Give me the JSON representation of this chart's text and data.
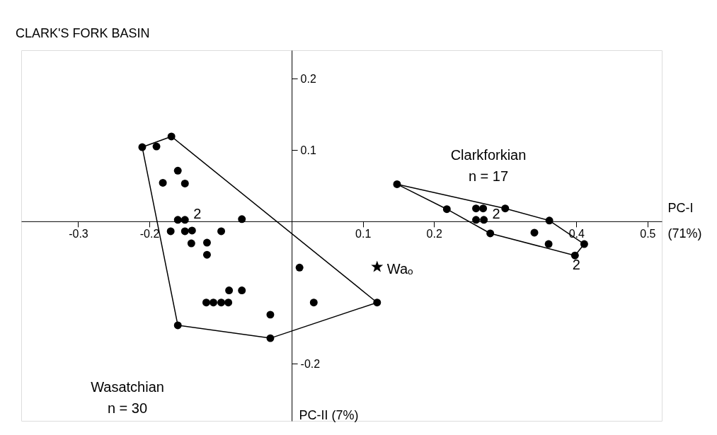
{
  "chart_data": {
    "type": "scatter",
    "title": "CLARK'S FORK BASIN",
    "xlabel": "PC-I (71%)",
    "ylabel": "PC-II (7%)",
    "xlim": [
      -0.38,
      0.52
    ],
    "ylim": [
      -0.28,
      0.24
    ],
    "xticks": [
      -0.3,
      -0.2,
      0.1,
      0.2,
      0.4,
      0.5
    ],
    "yticks": [
      0.2,
      0.1,
      -0.2
    ],
    "grid": false,
    "series": [
      {
        "type": "scatter",
        "marker": "circle",
        "color": "#000000",
        "x": [
          -0.21,
          -0.19,
          -0.169,
          -0.16,
          -0.181,
          -0.15,
          -0.16,
          -0.15,
          -0.17,
          -0.15,
          -0.14,
          -0.099,
          -0.07,
          -0.141,
          -0.119,
          -0.119,
          -0.088,
          -0.07,
          -0.12,
          -0.11,
          -0.099,
          -0.089,
          0.011,
          0.031,
          -0.03,
          0.12,
          -0.16,
          -0.03
        ],
        "values": [
          0.104,
          0.105,
          0.119,
          0.071,
          0.054,
          0.053,
          0.002,
          0.002,
          -0.014,
          -0.014,
          -0.013,
          -0.014,
          0.003,
          -0.031,
          -0.03,
          -0.047,
          -0.097,
          -0.097,
          -0.114,
          -0.114,
          -0.114,
          -0.114,
          -0.065,
          -0.114,
          -0.131,
          -0.114,
          -0.146,
          -0.164
        ]
      },
      {
        "type": "scatter",
        "marker": "circle",
        "color": "#000000",
        "x": [
          0.148,
          0.218,
          0.259,
          0.269,
          0.259,
          0.27,
          0.3,
          0.362,
          0.279,
          0.341,
          0.361,
          0.411,
          0.398
        ],
        "values": [
          0.052,
          0.017,
          0.018,
          0.018,
          0.002,
          0.002,
          0.018,
          0.001,
          -0.017,
          -0.016,
          -0.032,
          -0.032,
          -0.048
        ]
      },
      {
        "type": "scatter",
        "marker": "star",
        "color": "#000000",
        "x": [
          0.12
        ],
        "values": [
          -0.064
        ]
      },
      {
        "type": "line",
        "color": "#000000",
        "x": [
          -0.21,
          -0.169,
          0.12
        ],
        "values": [
          0.104,
          0.119,
          -0.114
        ]
      },
      {
        "type": "line",
        "color": "#000000",
        "x": [
          -0.21,
          -0.16,
          -0.03,
          0.12
        ],
        "values": [
          0.104,
          -0.146,
          -0.164,
          -0.114
        ]
      },
      {
        "type": "line",
        "color": "#000000",
        "x": [
          0.148,
          0.3,
          0.362,
          0.411
        ],
        "values": [
          0.052,
          0.018,
          0.001,
          -0.032
        ]
      },
      {
        "type": "line",
        "color": "#000000",
        "x": [
          0.148,
          0.218,
          0.279,
          0.398,
          0.411
        ],
        "values": [
          0.052,
          0.017,
          -0.017,
          -0.048,
          -0.032
        ]
      }
    ],
    "annotations": [
      "Clarkforkian",
      "n = 17",
      "Wasatchian",
      "n = 30",
      {
        "text": "Waₒ",
        "x": 0.12,
        "y": -0.064
      },
      {
        "text": "2",
        "x": -0.15,
        "y": 0.002
      },
      {
        "text": "2",
        "x": 0.27,
        "y": 0.002
      },
      {
        "text": "2",
        "x": 0.398,
        "y": -0.048
      }
    ]
  }
}
